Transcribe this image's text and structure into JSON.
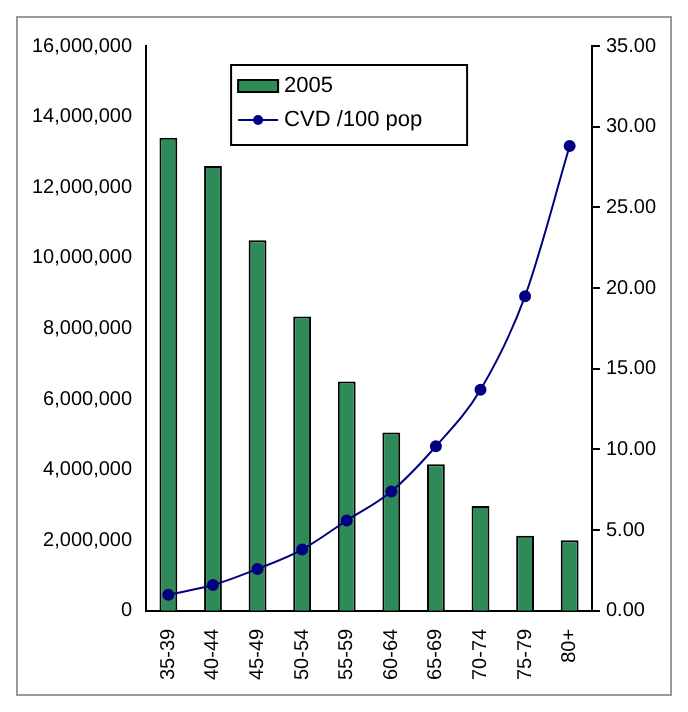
{
  "chart_data": {
    "type": "bar",
    "categories": [
      "35-39",
      "40-44",
      "45-49",
      "50-54",
      "55-59",
      "60-64",
      "65-69",
      "70-74",
      "75-79",
      "80+"
    ],
    "series": [
      {
        "name": "2005",
        "color": "#2e8b57",
        "values": [
          13400000,
          12600000,
          10500000,
          8340000,
          6500000,
          5050000,
          4150000,
          2970000,
          2130000,
          2000000
        ]
      },
      {
        "name": "CVD /100 pop",
        "type": "line",
        "axis": "y2",
        "color": "#000080",
        "values": [
          1.0,
          1.6,
          2.6,
          3.8,
          5.6,
          7.4,
          10.2,
          13.7,
          19.5,
          28.8
        ]
      }
    ],
    "ylim": [
      0,
      16000000
    ],
    "yticks": [
      {
        "value": 0,
        "label": "0"
      },
      {
        "value": 2000000,
        "label": "2,000,000"
      },
      {
        "value": 4000000,
        "label": "4,000,000"
      },
      {
        "value": 6000000,
        "label": "6,000,000"
      },
      {
        "value": 8000000,
        "label": "8,000,000"
      },
      {
        "value": 10000000,
        "label": "10,000,000"
      },
      {
        "value": 12000000,
        "label": "12,000,000"
      },
      {
        "value": 14000000,
        "label": "14,000,000"
      },
      {
        "value": 16000000,
        "label": "16,000,000"
      }
    ],
    "y2lim": [
      0,
      35
    ],
    "y2ticks": [
      {
        "value": 0,
        "label": "0.00"
      },
      {
        "value": 5,
        "label": "5.00"
      },
      {
        "value": 10,
        "label": "10.00"
      },
      {
        "value": 15,
        "label": "15.00"
      },
      {
        "value": 20,
        "label": "20.00"
      },
      {
        "value": 25,
        "label": "25.00"
      },
      {
        "value": 30,
        "label": "30.00"
      },
      {
        "value": 35,
        "label": "35.00"
      }
    ],
    "grid": false,
    "legend": "top left",
    "marker": "circle"
  }
}
